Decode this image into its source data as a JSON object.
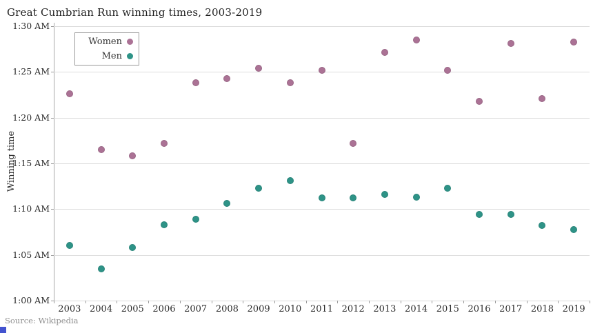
{
  "title": "Great Cumbrian Run winning times, 2003-2019",
  "ylabel": "Winning time",
  "source": "Source: Wikipedia",
  "legend": {
    "position": "top-left-inside",
    "items": [
      {
        "label": "Women",
        "color": "#ab7295"
      },
      {
        "label": "Men",
        "color": "#2e9387"
      }
    ]
  },
  "chart_data": {
    "type": "scatter",
    "title": "Great Cumbrian Run winning times, 2003-2019",
    "xlabel": "",
    "ylabel": "Winning time",
    "grid": "horizontal",
    "legend_position": "top-left inside plot",
    "categories": [
      "2003",
      "2004",
      "2005",
      "2006",
      "2007",
      "2008",
      "2009",
      "2010",
      "2011",
      "2012",
      "2013",
      "2014",
      "2015",
      "2016",
      "2017",
      "2018",
      "2019"
    ],
    "y_axis": {
      "tick_labels": [
        "1:00 AM",
        "1:05 AM",
        "1:10 AM",
        "1:15 AM",
        "1:20 AM",
        "1:25 AM",
        "1:30 AM"
      ],
      "min_minutes_past_1am": 0,
      "max_minutes_past_1am": 30,
      "tick_step_minutes": 5
    },
    "series": [
      {
        "name": "Women",
        "color": "#ab7295",
        "values_minutes_past_1am": [
          22.6,
          16.5,
          15.8,
          17.2,
          23.8,
          24.3,
          25.4,
          23.8,
          25.2,
          17.2,
          27.1,
          28.5,
          25.2,
          21.8,
          28.1,
          22.1,
          28.3
        ],
        "approx_times": [
          "1:22:36",
          "1:16:30",
          "1:15:48",
          "1:17:12",
          "1:23:48",
          "1:24:18",
          "1:25:24",
          "1:23:48",
          "1:25:12",
          "1:17:12",
          "1:27:06",
          "1:28:30",
          "1:25:12",
          "1:21:48",
          "1:28:06",
          "1:22:06",
          "1:28:18"
        ]
      },
      {
        "name": "Men",
        "color": "#2e9387",
        "values_minutes_past_1am": [
          6.0,
          3.5,
          5.8,
          8.3,
          8.9,
          10.6,
          12.3,
          13.1,
          11.2,
          11.2,
          11.6,
          11.3,
          12.3,
          9.4,
          9.4,
          8.2,
          7.8
        ],
        "approx_times": [
          "1:06:00",
          "1:03:30",
          "1:05:48",
          "1:08:18",
          "1:08:54",
          "1:10:36",
          "1:12:18",
          "1:13:06",
          "1:11:12",
          "1:11:12",
          "1:11:36",
          "1:11:18",
          "1:12:18",
          "1:09:24",
          "1:09:24",
          "1:08:12",
          "1:07:48"
        ]
      }
    ]
  }
}
